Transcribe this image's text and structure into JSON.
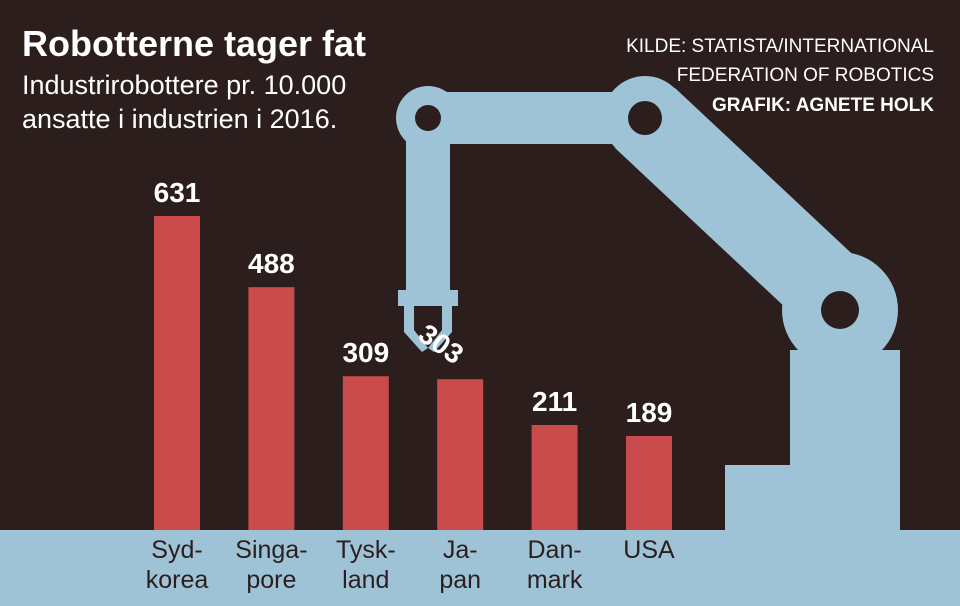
{
  "chart_data": {
    "type": "bar",
    "title": "Robotterne tager fat",
    "subtitle": [
      "Industrirobottere pr. 10.000",
      "ansatte i industrien i 2016."
    ],
    "source": [
      "KILDE: STATISTA/INTERNATIONAL",
      "FEDERATION OF ROBOTICS"
    ],
    "credit": "GRAFIK: AGNETE HOLK",
    "categories": [
      [
        "Syd-",
        "korea"
      ],
      [
        "Singa-",
        "pore"
      ],
      [
        "Tysk-",
        "land"
      ],
      [
        "Ja-",
        "pan"
      ],
      [
        "Dan-",
        "mark"
      ],
      [
        "USA"
      ]
    ],
    "values": [
      631,
      488,
      309,
      303,
      211,
      189
    ],
    "color": "#c94b4b"
  }
}
